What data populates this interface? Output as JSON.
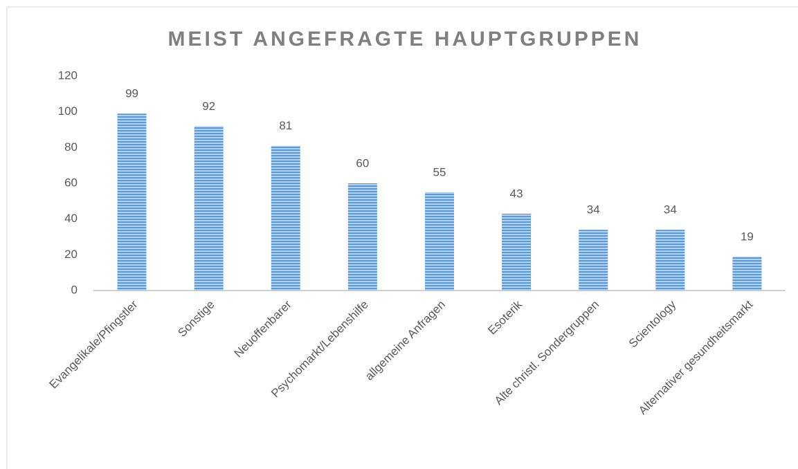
{
  "chart_data": {
    "type": "bar",
    "title": "MEIST ANGEFRAGTE HAUPTGRUPPEN",
    "categories": [
      "Evangelikale/Pfingstler",
      "Sonstige",
      "Neuoffenbarer",
      "Psychomarkt/Lebenshilfe",
      "allgemeine Anfragen",
      "Esoterik",
      "Alte christl. Sondergruppen",
      "Scientology",
      "Alternativer gesundheitsmarkt"
    ],
    "values": [
      99,
      92,
      81,
      60,
      55,
      43,
      34,
      34,
      19
    ],
    "color": "#5b9bd5",
    "ylim": [
      0,
      120
    ],
    "yticks": [
      0,
      20,
      40,
      60,
      80,
      100,
      120
    ],
    "grid": false
  }
}
